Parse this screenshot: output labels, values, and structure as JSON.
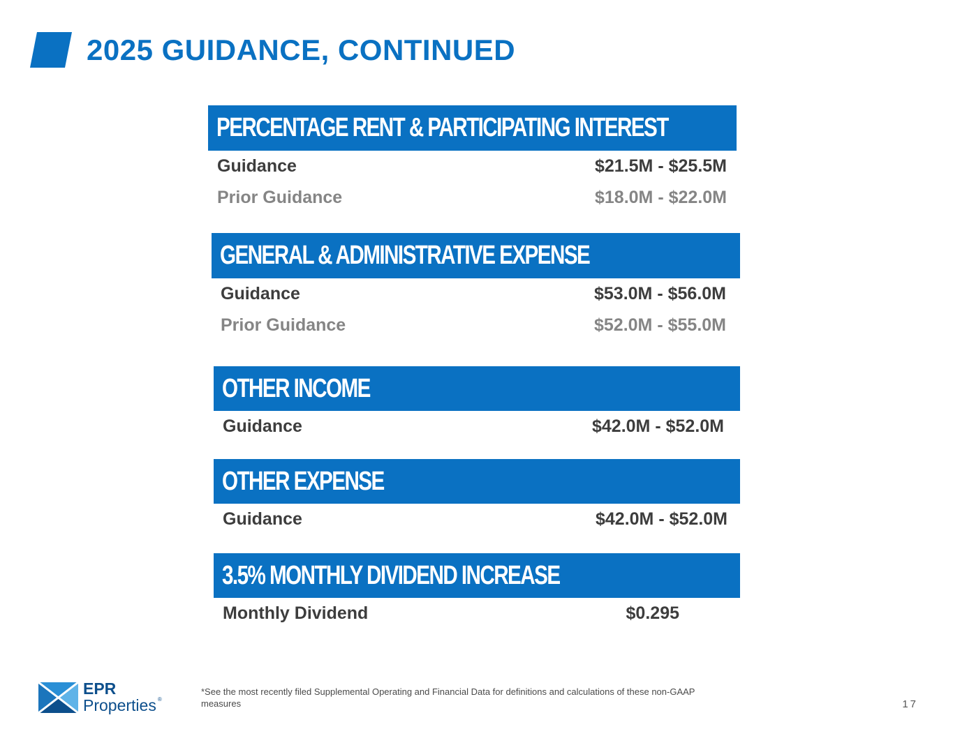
{
  "page": {
    "title": "2025 GUIDANCE, CONTINUED",
    "page_number": "17",
    "footnote": "*See the most recently filed Supplemental Operating and Financial Data for definitions and calculations of these non-GAAP measures"
  },
  "colors": {
    "brand_blue": "#0a71c2",
    "text_dark": "#3d3d3d",
    "text_muted": "#858585"
  },
  "sections": [
    {
      "header": "PERCENTAGE RENT & PARTICIPATING INTEREST",
      "rows": [
        {
          "label": "Guidance",
          "value": "$21.5M - $25.5M"
        },
        {
          "label": "Prior Guidance",
          "value": "$18.0M - $22.0M"
        }
      ]
    },
    {
      "header": "GENERAL & ADMINISTRATIVE EXPENSE",
      "rows": [
        {
          "label": "Guidance",
          "value": "$53.0M - $56.0M"
        },
        {
          "label": "Prior Guidance",
          "value": "$52.0M - $55.0M"
        }
      ]
    },
    {
      "header": "OTHER INCOME",
      "rows": [
        {
          "label": "Guidance",
          "value": "$42.0M - $52.0M"
        }
      ]
    },
    {
      "header": "OTHER EXPENSE",
      "rows": [
        {
          "label": "Guidance",
          "value": "$42.0M - $52.0M"
        }
      ]
    },
    {
      "header": "3.5% MONTHLY DIVIDEND INCREASE",
      "rows": [
        {
          "label": "Monthly Dividend",
          "value": "$0.295"
        }
      ]
    }
  ],
  "logo": {
    "line1": "EPR",
    "line2": "Properties",
    "mark": "®"
  }
}
